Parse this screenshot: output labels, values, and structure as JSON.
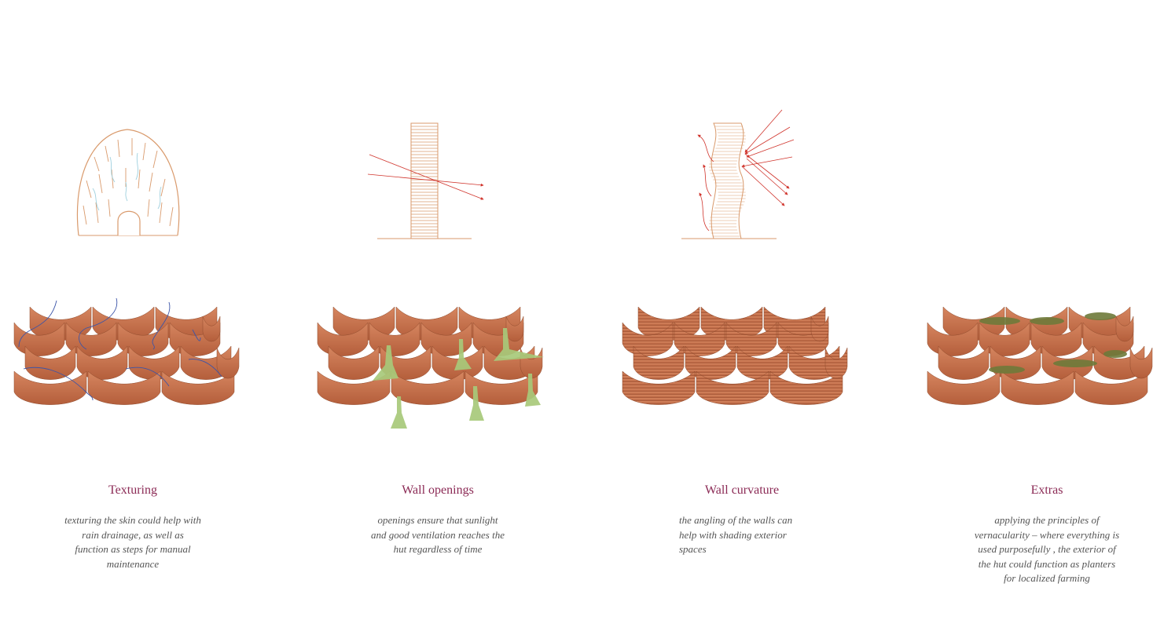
{
  "colors": {
    "terracotta": "#c26e48",
    "terracotta_dark": "#a9573a",
    "line_orange": "#d99a6c",
    "title_plum": "#8b2a55",
    "ray_red": "#d0342c",
    "drain_blue": "#3b54a8",
    "vent_green": "#a8c97a",
    "moss": "#6e7a3a"
  },
  "panels": [
    {
      "title": "Texturing",
      "body": "texturing the skin could help with rain drainage, as well as function as steps for manual maintenance",
      "diagram_icon": "textured-hut-icon"
    },
    {
      "title": "Wall openings",
      "body": "openings ensure that sunlight and good ventilation reaches the hut regardless of time",
      "diagram_icon": "wall-section-sunlight-icon"
    },
    {
      "title": "Wall curvature",
      "body": "the angling of the walls can help with shading exterior spaces",
      "diagram_icon": "curved-wall-shading-icon"
    },
    {
      "title": "Extras",
      "body": "applying the principles of vernacularity – where everything is used purposefully , the exterior of the hut could function as planters for localized farming",
      "diagram_icon": "planter-roof-icon"
    }
  ]
}
